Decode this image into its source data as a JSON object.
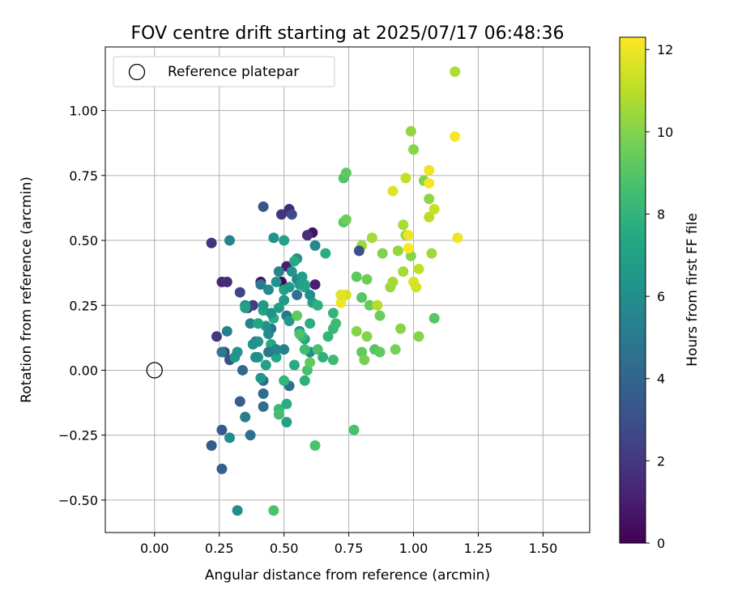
{
  "chart_data": {
    "type": "scatter",
    "title": "FOV centre drift starting at 2025/07/17 06:48:36",
    "xlabel": "Angular distance from reference (arcmin)",
    "ylabel": "Rotation from reference (arcmin)",
    "xlim": [
      -0.19,
      1.68
    ],
    "ylim": [
      -0.625,
      1.245
    ],
    "xticks": [
      "0.00",
      "0.25",
      "0.50",
      "0.75",
      "1.00",
      "1.25",
      "1.50"
    ],
    "xtick_values": [
      0,
      0.25,
      0.5,
      0.75,
      1.0,
      1.25,
      1.5
    ],
    "yticks": [
      "−0.50",
      "−0.25",
      "0.00",
      "0.25",
      "0.50",
      "0.75",
      "1.00"
    ],
    "ytick_values": [
      -0.5,
      -0.25,
      0,
      0.25,
      0.5,
      0.75,
      1.0
    ],
    "grid": true,
    "colormap": "viridis",
    "legend": {
      "placement": "top-left",
      "entries": [
        {
          "label": "Reference platepar",
          "marker": "open-circle",
          "x": 0.0,
          "y": 0.0
        }
      ]
    },
    "colorbar": {
      "label": "Hours from first FF file",
      "range": [
        0,
        12.3
      ],
      "ticks": [
        "0",
        "2",
        "4",
        "6",
        "8",
        "10",
        "12"
      ],
      "tick_values": [
        0,
        2,
        4,
        6,
        8,
        10,
        12
      ]
    },
    "points": [
      [
        0.49,
        0.34,
        0.2
      ],
      [
        0.41,
        0.34,
        0.5
      ],
      [
        0.51,
        0.4,
        1.0
      ],
      [
        0.61,
        0.53,
        0.6
      ],
      [
        0.52,
        0.62,
        1.4
      ],
      [
        0.59,
        0.52,
        1.6
      ],
      [
        0.62,
        0.33,
        1.1
      ],
      [
        0.26,
        0.34,
        1.4
      ],
      [
        0.28,
        0.34,
        1.6
      ],
      [
        0.22,
        0.49,
        1.8
      ],
      [
        0.49,
        0.6,
        1.9
      ],
      [
        0.24,
        0.13,
        2.1
      ],
      [
        0.38,
        0.25,
        2.2
      ],
      [
        0.27,
        0.07,
        2.3
      ],
      [
        0.36,
        0.24,
        2.4
      ],
      [
        0.33,
        0.3,
        2.5
      ],
      [
        0.53,
        0.6,
        2.8
      ],
      [
        0.29,
        0.04,
        3.0
      ],
      [
        0.42,
        0.63,
        3.3
      ],
      [
        0.22,
        -0.29,
        3.5
      ],
      [
        0.26,
        -0.23,
        3.4
      ],
      [
        0.33,
        -0.12,
        3.6
      ],
      [
        0.29,
        -0.26,
        6.0
      ],
      [
        0.26,
        -0.38,
        3.8
      ],
      [
        0.4,
        0.18,
        3.9
      ],
      [
        0.39,
        0.11,
        4.1
      ],
      [
        0.34,
        0.0,
        4.2
      ],
      [
        0.42,
        -0.04,
        4.3
      ],
      [
        0.42,
        -0.09,
        4.4
      ],
      [
        0.42,
        -0.14,
        4.5
      ],
      [
        0.37,
        -0.25,
        4.5
      ],
      [
        0.35,
        -0.18,
        5.2
      ],
      [
        0.32,
        -0.54,
        6.0
      ],
      [
        0.52,
        -0.06,
        4.6
      ],
      [
        0.45,
        0.16,
        4.6
      ],
      [
        0.55,
        0.29,
        4.7
      ],
      [
        0.51,
        0.21,
        4.8
      ],
      [
        0.26,
        0.07,
        5.0
      ],
      [
        0.28,
        0.15,
        5.2
      ],
      [
        0.29,
        0.5,
        5.5
      ],
      [
        0.5,
        0.08,
        5.3
      ],
      [
        0.48,
        0.38,
        5.5
      ],
      [
        0.55,
        0.35,
        5.4
      ],
      [
        0.62,
        0.48,
        5.7
      ],
      [
        0.55,
        0.43,
        6.0
      ],
      [
        0.6,
        0.07,
        6.0
      ],
      [
        0.56,
        0.15,
        5.8
      ],
      [
        0.46,
        0.51,
        6.2
      ],
      [
        0.35,
        0.25,
        6.4
      ],
      [
        0.31,
        0.05,
        6.6
      ],
      [
        0.32,
        0.07,
        6.3
      ],
      [
        0.44,
        0.31,
        5.8
      ],
      [
        0.47,
        0.34,
        6.2
      ],
      [
        0.52,
        0.19,
        6.5
      ],
      [
        0.5,
        0.27,
        6.7
      ],
      [
        0.56,
        0.33,
        6.8
      ],
      [
        0.61,
        0.26,
        7.0
      ],
      [
        0.58,
        0.12,
        7.2
      ],
      [
        0.4,
        0.11,
        6.5
      ],
      [
        0.4,
        0.05,
        6.8
      ],
      [
        0.43,
        0.02,
        7.0
      ],
      [
        0.47,
        0.05,
        7.3
      ],
      [
        0.42,
        0.23,
        7.4
      ],
      [
        0.46,
        0.2,
        7.6
      ],
      [
        0.45,
        0.1,
        7.5
      ],
      [
        0.5,
        0.31,
        7.1
      ],
      [
        0.5,
        0.5,
        7.0
      ],
      [
        0.54,
        0.42,
        7.5
      ],
      [
        0.58,
        0.33,
        7.6
      ],
      [
        0.6,
        0.18,
        7.7
      ],
      [
        0.63,
        0.25,
        7.8
      ],
      [
        0.66,
        0.45,
        7.7
      ],
      [
        0.67,
        0.13,
        8.0
      ],
      [
        0.69,
        0.16,
        8.2
      ],
      [
        0.7,
        0.18,
        8.4
      ],
      [
        0.69,
        0.22,
        8.1
      ],
      [
        0.72,
        0.29,
        8.6
      ],
      [
        0.54,
        0.02,
        7.5
      ],
      [
        0.48,
        -0.15,
        8.2
      ],
      [
        0.48,
        -0.17,
        8.6
      ],
      [
        0.51,
        -0.2,
        7.0
      ],
      [
        0.5,
        -0.04,
        8.0
      ],
      [
        0.51,
        -0.13,
        7.6
      ],
      [
        0.58,
        -0.04,
        7.8
      ],
      [
        0.59,
        0.0,
        8.7
      ],
      [
        0.62,
        -0.29,
        8.8
      ],
      [
        0.46,
        -0.54,
        8.8
      ],
      [
        0.77,
        -0.23,
        8.7
      ],
      [
        0.73,
        0.74,
        8.9
      ],
      [
        0.74,
        0.76,
        9.2
      ],
      [
        0.73,
        0.57,
        9.0
      ],
      [
        0.74,
        0.58,
        9.6
      ],
      [
        0.69,
        0.04,
        8.4
      ],
      [
        0.78,
        0.36,
        9.2
      ],
      [
        0.8,
        0.28,
        9.0
      ],
      [
        0.8,
        0.07,
        9.3
      ],
      [
        0.82,
        0.35,
        9.6
      ],
      [
        0.81,
        0.04,
        9.8
      ],
      [
        0.83,
        0.25,
        9.4
      ],
      [
        0.85,
        0.08,
        9.0
      ],
      [
        0.87,
        0.07,
        9.2
      ],
      [
        0.87,
        0.21,
        9.5
      ],
      [
        0.88,
        0.45,
        9.9
      ],
      [
        0.78,
        0.15,
        10.1
      ],
      [
        0.82,
        0.13,
        10.0
      ],
      [
        0.8,
        0.48,
        10.5
      ],
      [
        0.84,
        0.51,
        10.6
      ],
      [
        0.86,
        0.25,
        10.9
      ],
      [
        0.91,
        0.32,
        10.4
      ],
      [
        0.92,
        0.34,
        10.6
      ],
      [
        0.93,
        0.08,
        9.8
      ],
      [
        0.95,
        0.16,
        10.1
      ],
      [
        0.94,
        0.46,
        10.3
      ],
      [
        0.96,
        0.38,
        10.6
      ],
      [
        0.96,
        0.56,
        10.7
      ],
      [
        0.97,
        0.74,
        11.2
      ],
      [
        0.92,
        0.69,
        11.7
      ],
      [
        0.97,
        0.52,
        10.4
      ],
      [
        0.99,
        0.44,
        10.0
      ],
      [
        0.99,
        0.92,
        10.3
      ],
      [
        1.0,
        0.34,
        11.6
      ],
      [
        1.01,
        0.32,
        11.5
      ],
      [
        1.02,
        0.39,
        11.1
      ],
      [
        1.02,
        0.13,
        10.0
      ],
      [
        1.0,
        0.85,
        10.1
      ],
      [
        1.04,
        0.73,
        10.0
      ],
      [
        1.06,
        0.66,
        10.2
      ],
      [
        1.07,
        0.45,
        10.5
      ],
      [
        1.06,
        0.59,
        11.0
      ],
      [
        1.08,
        0.62,
        11.3
      ],
      [
        1.06,
        0.77,
        12.0
      ],
      [
        1.06,
        0.72,
        12.1
      ],
      [
        1.08,
        0.2,
        9.0
      ],
      [
        1.16,
        1.15,
        10.8
      ],
      [
        1.16,
        0.9,
        12.2
      ],
      [
        1.17,
        0.51,
        12.0
      ],
      [
        0.98,
        0.52,
        12.0
      ],
      [
        0.98,
        0.47,
        12.3
      ],
      [
        0.74,
        0.29,
        11.5
      ],
      [
        0.72,
        0.26,
        12.0
      ],
      [
        0.72,
        0.29,
        11.8
      ],
      [
        0.55,
        0.21,
        9.3
      ],
      [
        0.57,
        0.13,
        8.2
      ],
      [
        0.56,
        0.14,
        8.8
      ],
      [
        0.58,
        0.08,
        8.5
      ],
      [
        0.6,
        0.03,
        9.3
      ],
      [
        0.63,
        0.08,
        8.7
      ],
      [
        0.65,
        0.05,
        7.8
      ],
      [
        0.37,
        0.18,
        5.4
      ],
      [
        0.39,
        0.05,
        6.0
      ],
      [
        0.44,
        0.07,
        5.0
      ],
      [
        0.47,
        0.08,
        5.5
      ],
      [
        0.53,
        0.38,
        6.4
      ],
      [
        0.52,
        0.32,
        6.6
      ],
      [
        0.57,
        0.36,
        6.9
      ],
      [
        0.58,
        0.32,
        7.2
      ],
      [
        0.79,
        0.46,
        3.0
      ],
      [
        0.41,
        0.33,
        5.0
      ],
      [
        0.45,
        0.22,
        6.2
      ],
      [
        0.48,
        0.24,
        6.8
      ],
      [
        0.43,
        0.17,
        6.2
      ],
      [
        0.41,
        -0.03,
        6.5
      ],
      [
        0.6,
        0.29,
        6.0
      ],
      [
        0.42,
        0.25,
        6.7
      ],
      [
        0.44,
        0.14,
        5.8
      ],
      [
        0.38,
        0.1,
        6.2
      ],
      [
        0.4,
        0.18,
        7.4
      ],
      [
        0.35,
        0.24,
        6.9
      ]
    ]
  }
}
